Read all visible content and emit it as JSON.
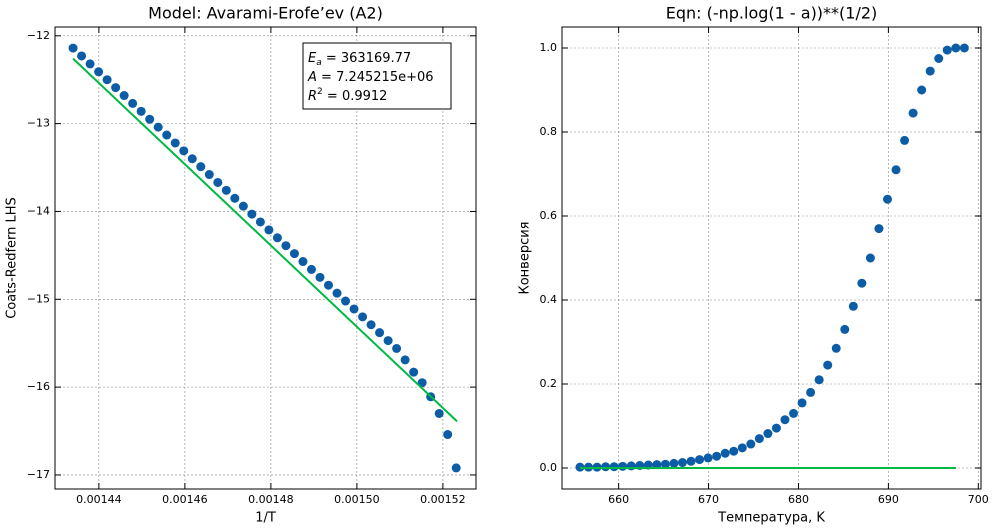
{
  "chart_data": [
    {
      "type": "scatter",
      "title": "Model: Avarami-Erofe’ev (A2)",
      "xlabel": "1/T",
      "ylabel": "Coats-Redfern LHS",
      "xlim": [
        0.0014298,
        0.0015277
      ],
      "ylim": [
        -17.16,
        -11.9
      ],
      "xticks": [
        0.00144,
        0.00146,
        0.00148,
        {
          "value": 0.0015,
          "label": "0.00150"
        },
        0.00152
      ],
      "yticks": [
        {
          "value": -17,
          "label": "−17"
        },
        {
          "value": -16,
          "label": "−16"
        },
        {
          "value": -15,
          "label": "−15"
        },
        {
          "value": -14,
          "label": "−14"
        },
        {
          "value": -13,
          "label": "−13"
        },
        {
          "value": -12,
          "label": "−12"
        }
      ],
      "grid": true,
      "annotation": [
        {
          "main": "E",
          "sub": "a",
          "rest": " = 363169.77"
        },
        {
          "main": "A",
          "rest": " = 7.245215e+06"
        },
        {
          "main": "R",
          "sup": "2",
          "rest": " = 0.9912"
        }
      ],
      "series": [
        {
          "type": "scatter",
          "color": "#0C5DA5",
          "x": [
            0.001434,
            0.00143598,
            0.00143796,
            0.00143994,
            0.00144192,
            0.0014439,
            0.00144588,
            0.00144786,
            0.00144984,
            0.00145182,
            0.0014538,
            0.00145578,
            0.00145776,
            0.00145974,
            0.00146172,
            0.0014637,
            0.00146568,
            0.00146766,
            0.00146964,
            0.00147162,
            0.0014736,
            0.00147558,
            0.00147756,
            0.00147954,
            0.00148152,
            0.0014835,
            0.00148548,
            0.00148746,
            0.00148944,
            0.00149142,
            0.0014934,
            0.00149538,
            0.00149736,
            0.00149934,
            0.00150132,
            0.0015033,
            0.00150528,
            0.00150726,
            0.00150924,
            0.00151122,
            0.0015132,
            0.00151518,
            0.00151716,
            0.00151914,
            0.00152112,
            0.0015231
          ],
          "values": [
            -12.14,
            -12.23,
            -12.32,
            -12.41,
            -12.5,
            -12.59,
            -12.68,
            -12.77,
            -12.86,
            -12.95,
            -13.04,
            -13.13,
            -13.22,
            -13.31,
            -13.4,
            -13.49,
            -13.58,
            -13.67,
            -13.76,
            -13.85,
            -13.94,
            -14.03,
            -14.12,
            -14.21,
            -14.3,
            -14.39,
            -14.48,
            -14.57,
            -14.66,
            -14.75,
            -14.84,
            -14.93,
            -15.02,
            -15.11,
            -15.2,
            -15.29,
            -15.38,
            -15.47,
            -15.56,
            -15.69,
            -15.83,
            -15.95,
            -16.11,
            -16.3,
            -16.54,
            -16.92
          ]
        },
        {
          "type": "line",
          "color": "#00B945",
          "x": [
            0.001434,
            0.0015233
          ],
          "values": [
            -12.26,
            -16.39
          ]
        }
      ]
    },
    {
      "type": "scatter",
      "title": "Eqn: (-np.log(1 - a))**(1/2)",
      "xlabel": "Температура, K",
      "ylabel": "Конверсия",
      "xlim": [
        653.7,
        700.3
      ],
      "ylim": [
        -0.05,
        1.05
      ],
      "xticks": [
        660,
        670,
        680,
        690,
        700
      ],
      "yticks": [
        {
          "value": 0,
          "label": "0.0"
        },
        {
          "value": 0.2,
          "label": "0.2"
        },
        {
          "value": 0.4,
          "label": "0.4"
        },
        {
          "value": 0.6,
          "label": "0.6"
        },
        {
          "value": 0.8,
          "label": "0.8"
        },
        {
          "value": 1,
          "label": "1.0"
        }
      ],
      "grid": true,
      "series": [
        {
          "type": "scatter",
          "color": "#0C5DA5",
          "x": [
            655.7,
            656.65,
            657.6,
            658.55,
            659.5,
            660.45,
            661.4,
            662.35,
            663.3,
            664.25,
            665.2,
            666.15,
            667.1,
            668.05,
            669.0,
            669.95,
            670.9,
            671.85,
            672.8,
            673.75,
            674.7,
            675.65,
            676.6,
            677.55,
            678.5,
            679.45,
            680.4,
            681.35,
            682.3,
            683.25,
            684.2,
            685.15,
            686.1,
            687.05,
            688.0,
            688.95,
            689.9,
            690.85,
            691.8,
            692.75,
            693.7,
            694.65,
            695.6,
            696.55,
            697.5,
            698.45
          ],
          "values": [
            0.002,
            0.002,
            0.002,
            0.003,
            0.003,
            0.004,
            0.005,
            0.006,
            0.007,
            0.008,
            0.009,
            0.011,
            0.013,
            0.016,
            0.02,
            0.024,
            0.028,
            0.035,
            0.04,
            0.048,
            0.057,
            0.07,
            0.082,
            0.095,
            0.115,
            0.13,
            0.155,
            0.18,
            0.21,
            0.245,
            0.285,
            0.33,
            0.385,
            0.44,
            0.5,
            0.57,
            0.64,
            0.71,
            0.78,
            0.845,
            0.9,
            0.945,
            0.975,
            0.995,
            1.0,
            1.0
          ]
        },
        {
          "type": "line",
          "color": "#00B945",
          "x": [
            655.7,
            697.5
          ],
          "values": [
            0,
            0
          ]
        }
      ]
    }
  ]
}
